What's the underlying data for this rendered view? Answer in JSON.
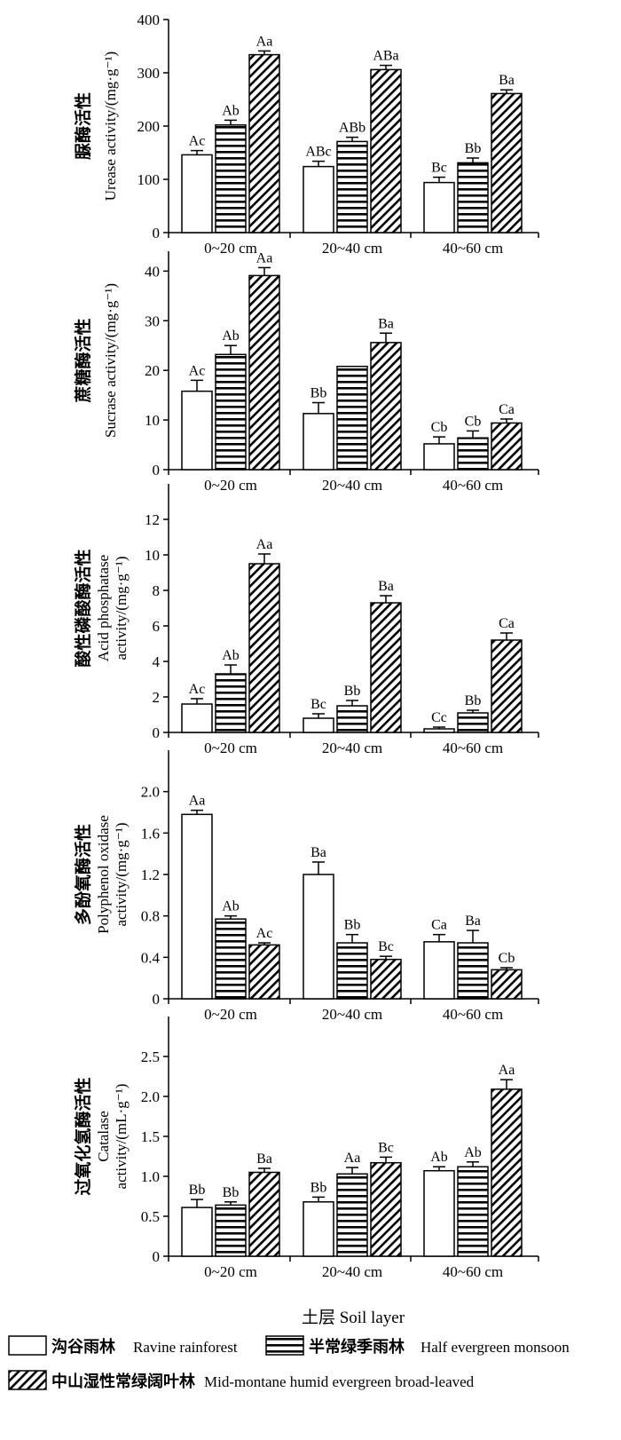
{
  "figure": {
    "xlabel": "土层 Soil layer",
    "legend": [
      {
        "name_cn": "沟谷雨林",
        "name_en": "Ravine rainforest",
        "pattern": "empty"
      },
      {
        "name_cn": "半常绿季雨林",
        "name_en": "Half evergreen monsoon",
        "pattern": "horizontal"
      },
      {
        "name_cn": "中山湿性常绿阔叶林",
        "name_en": "Mid-montane humid evergreen broad-leaved",
        "pattern": "diagonal"
      }
    ],
    "legend_placement": "bottom",
    "colors": {
      "line": "#000000",
      "background": "#ffffff"
    }
  },
  "chart_data": [
    {
      "type": "bar",
      "ylabel_cn": "脲酶活性",
      "ylabel_en": "Urease activity/(mg·g⁻¹)",
      "categories": [
        "0~20 cm",
        "20~40 cm",
        "40~60 cm"
      ],
      "ylim": [
        0,
        400
      ],
      "yticks": [
        0,
        100,
        200,
        300,
        400
      ],
      "tick_labels": [
        "0",
        "100",
        "200",
        "300",
        "400"
      ],
      "series": [
        {
          "values": [
            146,
            124,
            94
          ],
          "errors": [
            8,
            10,
            10
          ],
          "labels": [
            "Ac",
            "ABc",
            "Bc"
          ]
        },
        {
          "values": [
            202,
            171,
            131
          ],
          "errors": [
            9,
            8,
            9
          ],
          "labels": [
            "Ab",
            "ABb",
            "Bb"
          ]
        },
        {
          "values": [
            334,
            306,
            261
          ],
          "errors": [
            7,
            8,
            7
          ],
          "labels": [
            "Aa",
            "ABa",
            "Ba"
          ]
        }
      ]
    },
    {
      "type": "bar",
      "ylabel_cn": "蔗糖酶活性",
      "ylabel_en": "Sucrase activity/(mg·g⁻¹)",
      "categories": [
        "0~20 cm",
        "20~40 cm",
        "40~60 cm"
      ],
      "ylim": [
        0,
        44
      ],
      "yticks": [
        0,
        10,
        20,
        30,
        40
      ],
      "tick_labels": [
        "0",
        "10",
        "20",
        "30",
        "40"
      ],
      "series": [
        {
          "values": [
            15.8,
            11.3,
            5.2
          ],
          "errors": [
            2.2,
            2.2,
            1.4
          ],
          "labels": [
            "Ac",
            "Bb",
            "Cb"
          ]
        },
        {
          "values": [
            23.2,
            20.8,
            6.4
          ],
          "errors": [
            1.8,
            0,
            1.4
          ],
          "labels": [
            "Ab",
            "",
            "Cb"
          ]
        },
        {
          "values": [
            39.1,
            25.6,
            9.4
          ],
          "errors": [
            1.6,
            1.9,
            0.8
          ],
          "labels": [
            "Aa",
            "Ba",
            "Ca"
          ]
        }
      ]
    },
    {
      "type": "bar",
      "ylabel_cn": "酸性磷酸酶活性",
      "ylabel_en": "Acid phosphatase activity/(mg·g⁻¹)",
      "categories": [
        "0~20 cm",
        "20~40 cm",
        "40~60 cm"
      ],
      "ylim": [
        0,
        14
      ],
      "yticks": [
        0,
        2,
        4,
        6,
        8,
        10,
        12
      ],
      "tick_labels": [
        "0",
        "2",
        "4",
        "6",
        "8",
        "10",
        "12"
      ],
      "series": [
        {
          "values": [
            1.6,
            0.8,
            0.2
          ],
          "errors": [
            0.3,
            0.25,
            0.1
          ],
          "labels": [
            "Ac",
            "Bc",
            "Cc"
          ]
        },
        {
          "values": [
            3.3,
            1.5,
            1.1
          ],
          "errors": [
            0.5,
            0.3,
            0.15
          ],
          "labels": [
            "Ab",
            "Bb",
            "Bb"
          ]
        },
        {
          "values": [
            9.5,
            7.3,
            5.2
          ],
          "errors": [
            0.55,
            0.4,
            0.4
          ],
          "labels": [
            "Aa",
            "Ba",
            "Ca"
          ]
        }
      ]
    },
    {
      "type": "bar",
      "ylabel_cn": "多酚氧酶活性",
      "ylabel_en": "Polyphenol oxidase activity/(mg·g⁻¹)",
      "categories": [
        "0~20 cm",
        "20~40 cm",
        "40~60 cm"
      ],
      "ylim": [
        0,
        2.4
      ],
      "yticks": [
        0,
        0.4,
        0.8,
        1.2,
        1.6,
        2.0
      ],
      "tick_labels": [
        "0",
        "0.4",
        "0.8",
        "1.2",
        "1.6",
        "2.0"
      ],
      "series": [
        {
          "values": [
            1.78,
            1.2,
            0.55
          ],
          "errors": [
            0.04,
            0.12,
            0.07
          ],
          "labels": [
            "Aa",
            "Ba",
            "Ca"
          ]
        },
        {
          "values": [
            0.77,
            0.54,
            0.54
          ],
          "errors": [
            0.03,
            0.08,
            0.12
          ],
          "labels": [
            "Ab",
            "Bb",
            "Ba"
          ]
        },
        {
          "values": [
            0.52,
            0.38,
            0.28
          ],
          "errors": [
            0.02,
            0.03,
            0.02
          ],
          "labels": [
            "Ac",
            "Bc",
            "Cb"
          ]
        }
      ]
    },
    {
      "type": "bar",
      "ylabel_cn": "过氧化氢酶活性",
      "ylabel_en": "Catalase activity/(mL·g⁻¹)",
      "categories": [
        "0~20 cm",
        "20~40 cm",
        "40~60 cm"
      ],
      "ylim": [
        0,
        3.0
      ],
      "yticks": [
        0,
        0.5,
        1.0,
        1.5,
        2.0,
        2.5
      ],
      "tick_labels": [
        "0",
        "0.5",
        "1.0",
        "1.5",
        "2.0",
        "2.5"
      ],
      "series": [
        {
          "values": [
            0.61,
            0.68,
            1.07
          ],
          "errors": [
            0.1,
            0.06,
            0.05
          ],
          "labels": [
            "Bb",
            "Bb",
            "Ab"
          ]
        },
        {
          "values": [
            0.64,
            1.03,
            1.12
          ],
          "errors": [
            0.04,
            0.08,
            0.06
          ],
          "labels": [
            "Bb",
            "Aa",
            "Ab"
          ]
        },
        {
          "values": [
            1.05,
            1.17,
            2.09
          ],
          "errors": [
            0.05,
            0.07,
            0.12
          ],
          "labels": [
            "Ba",
            "Bc",
            "Aa"
          ]
        }
      ]
    }
  ]
}
